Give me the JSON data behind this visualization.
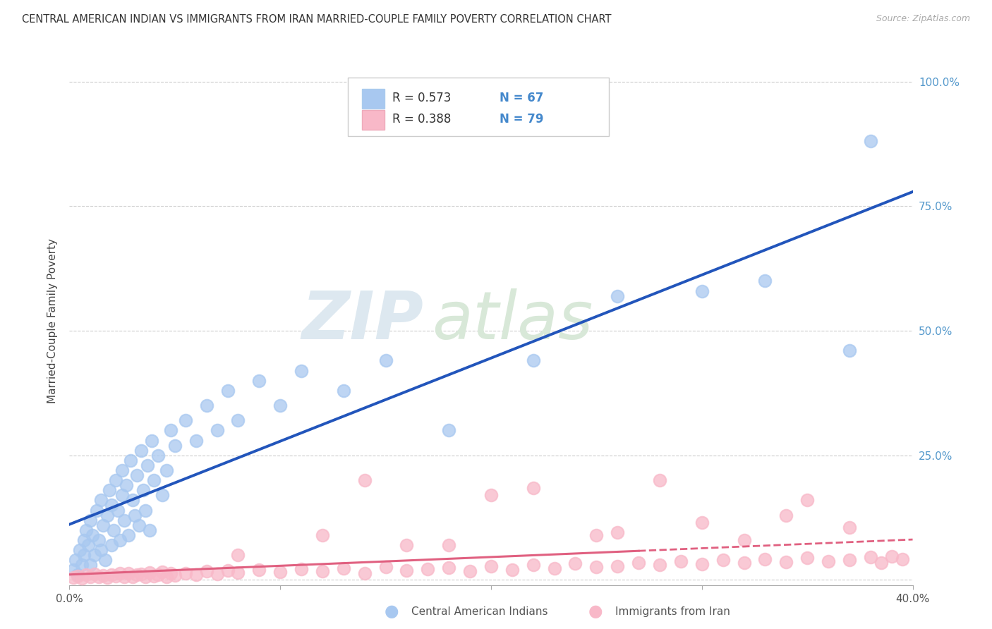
{
  "title": "CENTRAL AMERICAN INDIAN VS IMMIGRANTS FROM IRAN MARRIED-COUPLE FAMILY POVERTY CORRELATION CHART",
  "source": "Source: ZipAtlas.com",
  "ylabel": "Married-Couple Family Poverty",
  "xlim": [
    0.0,
    0.4
  ],
  "ylim": [
    -0.01,
    1.05
  ],
  "xticks": [
    0.0,
    0.1,
    0.2,
    0.3,
    0.4
  ],
  "xticklabels": [
    "0.0%",
    "",
    "",
    "",
    "40.0%"
  ],
  "yticks": [
    0.0,
    0.25,
    0.5,
    0.75,
    1.0
  ],
  "yticklabels_right": [
    "",
    "25.0%",
    "50.0%",
    "75.0%",
    "100.0%"
  ],
  "blue_color": "#a8c8f0",
  "pink_color": "#f8b8c8",
  "blue_line_color": "#2255bb",
  "pink_line_color": "#e06080",
  "watermark_zip": "ZIP",
  "watermark_atlas": "atlas",
  "legend_label_blue": "Central American Indians",
  "legend_label_pink": "Immigrants from Iran",
  "blue_R": "0.573",
  "blue_N": "67",
  "pink_R": "0.388",
  "pink_N": "79",
  "blue_scatter_x": [
    0.002,
    0.003,
    0.004,
    0.005,
    0.006,
    0.007,
    0.007,
    0.008,
    0.009,
    0.01,
    0.01,
    0.011,
    0.012,
    0.013,
    0.014,
    0.015,
    0.015,
    0.016,
    0.017,
    0.018,
    0.019,
    0.02,
    0.02,
    0.021,
    0.022,
    0.023,
    0.024,
    0.025,
    0.025,
    0.026,
    0.027,
    0.028,
    0.029,
    0.03,
    0.031,
    0.032,
    0.033,
    0.034,
    0.035,
    0.036,
    0.037,
    0.038,
    0.039,
    0.04,
    0.042,
    0.044,
    0.046,
    0.048,
    0.05,
    0.055,
    0.06,
    0.065,
    0.07,
    0.075,
    0.08,
    0.09,
    0.1,
    0.11,
    0.13,
    0.15,
    0.18,
    0.22,
    0.26,
    0.3,
    0.33,
    0.37,
    0.38
  ],
  "blue_scatter_y": [
    0.02,
    0.04,
    0.01,
    0.06,
    0.03,
    0.08,
    0.05,
    0.1,
    0.07,
    0.03,
    0.12,
    0.09,
    0.05,
    0.14,
    0.08,
    0.06,
    0.16,
    0.11,
    0.04,
    0.13,
    0.18,
    0.07,
    0.15,
    0.1,
    0.2,
    0.14,
    0.08,
    0.17,
    0.22,
    0.12,
    0.19,
    0.09,
    0.24,
    0.16,
    0.13,
    0.21,
    0.11,
    0.26,
    0.18,
    0.14,
    0.23,
    0.1,
    0.28,
    0.2,
    0.25,
    0.17,
    0.22,
    0.3,
    0.27,
    0.32,
    0.28,
    0.35,
    0.3,
    0.38,
    0.32,
    0.4,
    0.35,
    0.42,
    0.38,
    0.44,
    0.3,
    0.44,
    0.57,
    0.58,
    0.6,
    0.46,
    0.88
  ],
  "pink_scatter_x": [
    0.002,
    0.004,
    0.006,
    0.008,
    0.01,
    0.012,
    0.014,
    0.016,
    0.018,
    0.02,
    0.022,
    0.024,
    0.026,
    0.028,
    0.03,
    0.032,
    0.034,
    0.036,
    0.038,
    0.04,
    0.042,
    0.044,
    0.046,
    0.048,
    0.05,
    0.055,
    0.06,
    0.065,
    0.07,
    0.075,
    0.08,
    0.09,
    0.1,
    0.11,
    0.12,
    0.13,
    0.14,
    0.15,
    0.16,
    0.17,
    0.18,
    0.19,
    0.2,
    0.21,
    0.22,
    0.23,
    0.24,
    0.25,
    0.26,
    0.27,
    0.28,
    0.29,
    0.3,
    0.31,
    0.32,
    0.33,
    0.34,
    0.35,
    0.36,
    0.37,
    0.38,
    0.385,
    0.39,
    0.395,
    0.14,
    0.2,
    0.25,
    0.3,
    0.35,
    0.18,
    0.22,
    0.26,
    0.32,
    0.37,
    0.28,
    0.34,
    0.16,
    0.12,
    0.08
  ],
  "pink_scatter_y": [
    0.005,
    0.008,
    0.004,
    0.01,
    0.006,
    0.012,
    0.007,
    0.009,
    0.005,
    0.011,
    0.008,
    0.013,
    0.006,
    0.014,
    0.007,
    0.01,
    0.012,
    0.006,
    0.015,
    0.008,
    0.011,
    0.016,
    0.007,
    0.013,
    0.009,
    0.014,
    0.01,
    0.017,
    0.012,
    0.019,
    0.015,
    0.02,
    0.016,
    0.022,
    0.018,
    0.024,
    0.014,
    0.026,
    0.019,
    0.022,
    0.025,
    0.017,
    0.028,
    0.021,
    0.03,
    0.023,
    0.033,
    0.026,
    0.028,
    0.035,
    0.03,
    0.038,
    0.032,
    0.04,
    0.034,
    0.042,
    0.036,
    0.044,
    0.038,
    0.04,
    0.046,
    0.035,
    0.048,
    0.042,
    0.2,
    0.17,
    0.09,
    0.115,
    0.16,
    0.07,
    0.185,
    0.095,
    0.08,
    0.105,
    0.2,
    0.13,
    0.07,
    0.09,
    0.05
  ]
}
